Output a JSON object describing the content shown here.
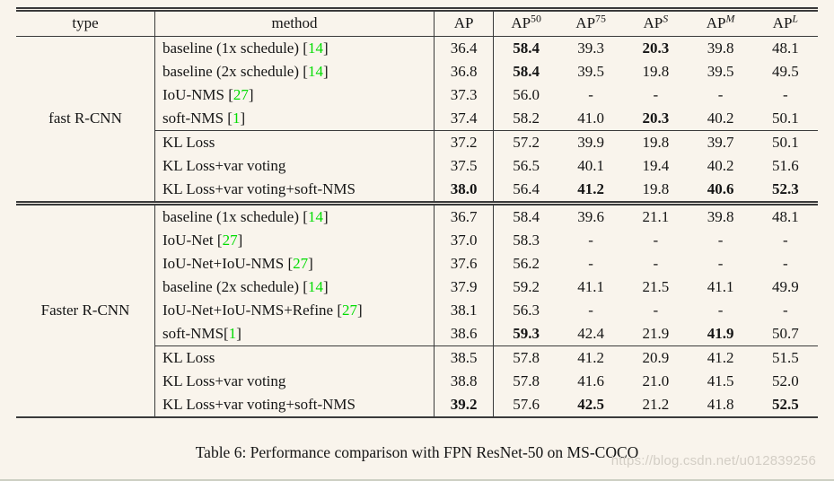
{
  "page": {
    "caption": "Table 6: Performance comparison with FPN ResNet-50 on MS-COCO",
    "watermark": "https://blog.csdn.net/u012839256"
  },
  "colors": {
    "background": "#f9f4ec",
    "text": "#151515",
    "rule": "#3a3a3a",
    "citation_green": "#00dc00",
    "watermark_gray": "#d3cec5"
  },
  "table": {
    "headers": [
      {
        "label": "type",
        "sup": "",
        "sup_italic": false
      },
      {
        "label": "method",
        "sup": "",
        "sup_italic": false
      },
      {
        "label": "AP",
        "sup": "",
        "sup_italic": false
      },
      {
        "label": "AP",
        "sup": "50",
        "sup_italic": false
      },
      {
        "label": "AP",
        "sup": "75",
        "sup_italic": false
      },
      {
        "label": "AP",
        "sup": "S",
        "sup_italic": true
      },
      {
        "label": "AP",
        "sup": "M",
        "sup_italic": true
      },
      {
        "label": "AP",
        "sup": "L",
        "sup_italic": true
      }
    ],
    "sections": [
      {
        "type_label": "fast R-CNN",
        "groups": [
          {
            "rows": [
              {
                "method": "baseline (1x schedule) [14]",
                "values": [
                  "36.4",
                  "58.4",
                  "39.3",
                  "20.3",
                  "39.8",
                  "48.1"
                ],
                "bold": [
                  1,
                  3
                ]
              },
              {
                "method": "baseline (2x schedule) [14]",
                "values": [
                  "36.8",
                  "58.4",
                  "39.5",
                  "19.8",
                  "39.5",
                  "49.5"
                ],
                "bold": [
                  1
                ]
              },
              {
                "method": "IoU-NMS [27]",
                "values": [
                  "37.3",
                  "56.0",
                  "-",
                  "-",
                  "-",
                  "-"
                ],
                "bold": []
              },
              {
                "method": "soft-NMS [1]",
                "values": [
                  "37.4",
                  "58.2",
                  "41.0",
                  "20.3",
                  "40.2",
                  "50.1"
                ],
                "bold": [
                  3
                ]
              }
            ]
          },
          {
            "rows": [
              {
                "method": "KL Loss",
                "values": [
                  "37.2",
                  "57.2",
                  "39.9",
                  "19.8",
                  "39.7",
                  "50.1"
                ],
                "bold": []
              },
              {
                "method": "KL Loss+var voting",
                "values": [
                  "37.5",
                  "56.5",
                  "40.1",
                  "19.4",
                  "40.2",
                  "51.6"
                ],
                "bold": []
              },
              {
                "method": "KL Loss+var voting+soft-NMS",
                "values": [
                  "38.0",
                  "56.4",
                  "41.2",
                  "19.8",
                  "40.6",
                  "52.3"
                ],
                "bold": [
                  0,
                  2,
                  4,
                  5
                ]
              }
            ]
          }
        ]
      },
      {
        "type_label": "Faster R-CNN",
        "groups": [
          {
            "rows": [
              {
                "method": "baseline (1x schedule) [14]",
                "values": [
                  "36.7",
                  "58.4",
                  "39.6",
                  "21.1",
                  "39.8",
                  "48.1"
                ],
                "bold": []
              },
              {
                "method": "IoU-Net [27]",
                "values": [
                  "37.0",
                  "58.3",
                  "-",
                  "-",
                  "-",
                  "-"
                ],
                "bold": []
              },
              {
                "method": "IoU-Net+IoU-NMS [27]",
                "values": [
                  "37.6",
                  "56.2",
                  "-",
                  "-",
                  "-",
                  "-"
                ],
                "bold": []
              },
              {
                "method": "baseline (2x schedule) [14]",
                "values": [
                  "37.9",
                  "59.2",
                  "41.1",
                  "21.5",
                  "41.1",
                  "49.9"
                ],
                "bold": []
              },
              {
                "method": "IoU-Net+IoU-NMS+Refine [27]",
                "values": [
                  "38.1",
                  "56.3",
                  "-",
                  "-",
                  "-",
                  "-"
                ],
                "bold": []
              },
              {
                "method": "soft-NMS[1]",
                "values": [
                  "38.6",
                  "59.3",
                  "42.4",
                  "21.9",
                  "41.9",
                  "50.7"
                ],
                "bold": [
                  1,
                  4
                ]
              }
            ]
          },
          {
            "rows": [
              {
                "method": "KL Loss",
                "values": [
                  "38.5",
                  "57.8",
                  "41.2",
                  "20.9",
                  "41.2",
                  "51.5"
                ],
                "bold": []
              },
              {
                "method": "KL Loss+var voting",
                "values": [
                  "38.8",
                  "57.8",
                  "41.6",
                  "21.0",
                  "41.5",
                  "52.0"
                ],
                "bold": []
              },
              {
                "method": "KL Loss+var voting+soft-NMS",
                "values": [
                  "39.2",
                  "57.6",
                  "42.5",
                  "21.2",
                  "41.8",
                  "52.5"
                ],
                "bold": [
                  0,
                  2,
                  5
                ]
              }
            ]
          }
        ]
      }
    ]
  }
}
